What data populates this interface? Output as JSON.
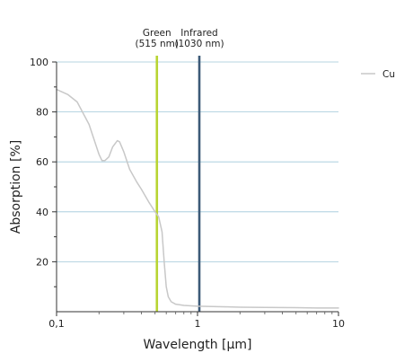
{
  "chart_data": {
    "type": "line",
    "title": "",
    "xlabel": "Wavelength [µm]",
    "ylabel": "Absorption [%]",
    "xscale": "log",
    "xlim": [
      0.1,
      10
    ],
    "ylim": [
      0,
      100
    ],
    "xticks": [
      0.1,
      1,
      10
    ],
    "xtick_labels": [
      "0,1",
      "1",
      "10"
    ],
    "yticks": [
      20,
      40,
      60,
      80,
      100
    ],
    "ytick_labels": [
      "20",
      "40",
      "60",
      "80",
      "100"
    ],
    "grid": "horizontal",
    "legend_position": "top-right",
    "series": [
      {
        "name": "Cu",
        "color": "#c8c8c8",
        "x": [
          0.1,
          0.12,
          0.14,
          0.17,
          0.2,
          0.21,
          0.22,
          0.235,
          0.25,
          0.27,
          0.28,
          0.3,
          0.33,
          0.37,
          0.4,
          0.45,
          0.5,
          0.53,
          0.56,
          0.58,
          0.6,
          0.62,
          0.65,
          0.7,
          0.8,
          1.0,
          1.5,
          2,
          3,
          5,
          7,
          10
        ],
        "y": [
          89,
          87,
          84,
          75,
          63,
          60.5,
          60.5,
          62,
          66,
          68.5,
          68,
          64,
          57,
          52,
          49,
          44,
          40,
          38,
          32,
          20,
          10,
          6,
          4,
          3,
          2.5,
          2.2,
          2,
          1.8,
          1.7,
          1.6,
          1.5,
          1.5
        ]
      }
    ],
    "annotations": [
      {
        "x": 0.515,
        "color": "#b8d432",
        "label_lines": [
          "Green",
          "(515 nm)"
        ]
      },
      {
        "x": 1.03,
        "color": "#3c5a78",
        "label_lines": [
          "Infrared",
          "(1030 nm)"
        ]
      }
    ]
  }
}
